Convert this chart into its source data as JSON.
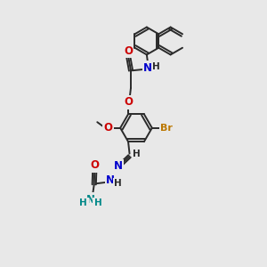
{
  "bg_color": "#e8e8e8",
  "bond_color": "#2a2a2a",
  "O_color": "#cc0000",
  "N_color": "#0000cc",
  "Br_color": "#bb7700",
  "teal_color": "#008888",
  "figsize": [
    3.0,
    3.0
  ],
  "dpi": 100,
  "xlim": [
    0,
    10
  ],
  "ylim": [
    0,
    10
  ]
}
